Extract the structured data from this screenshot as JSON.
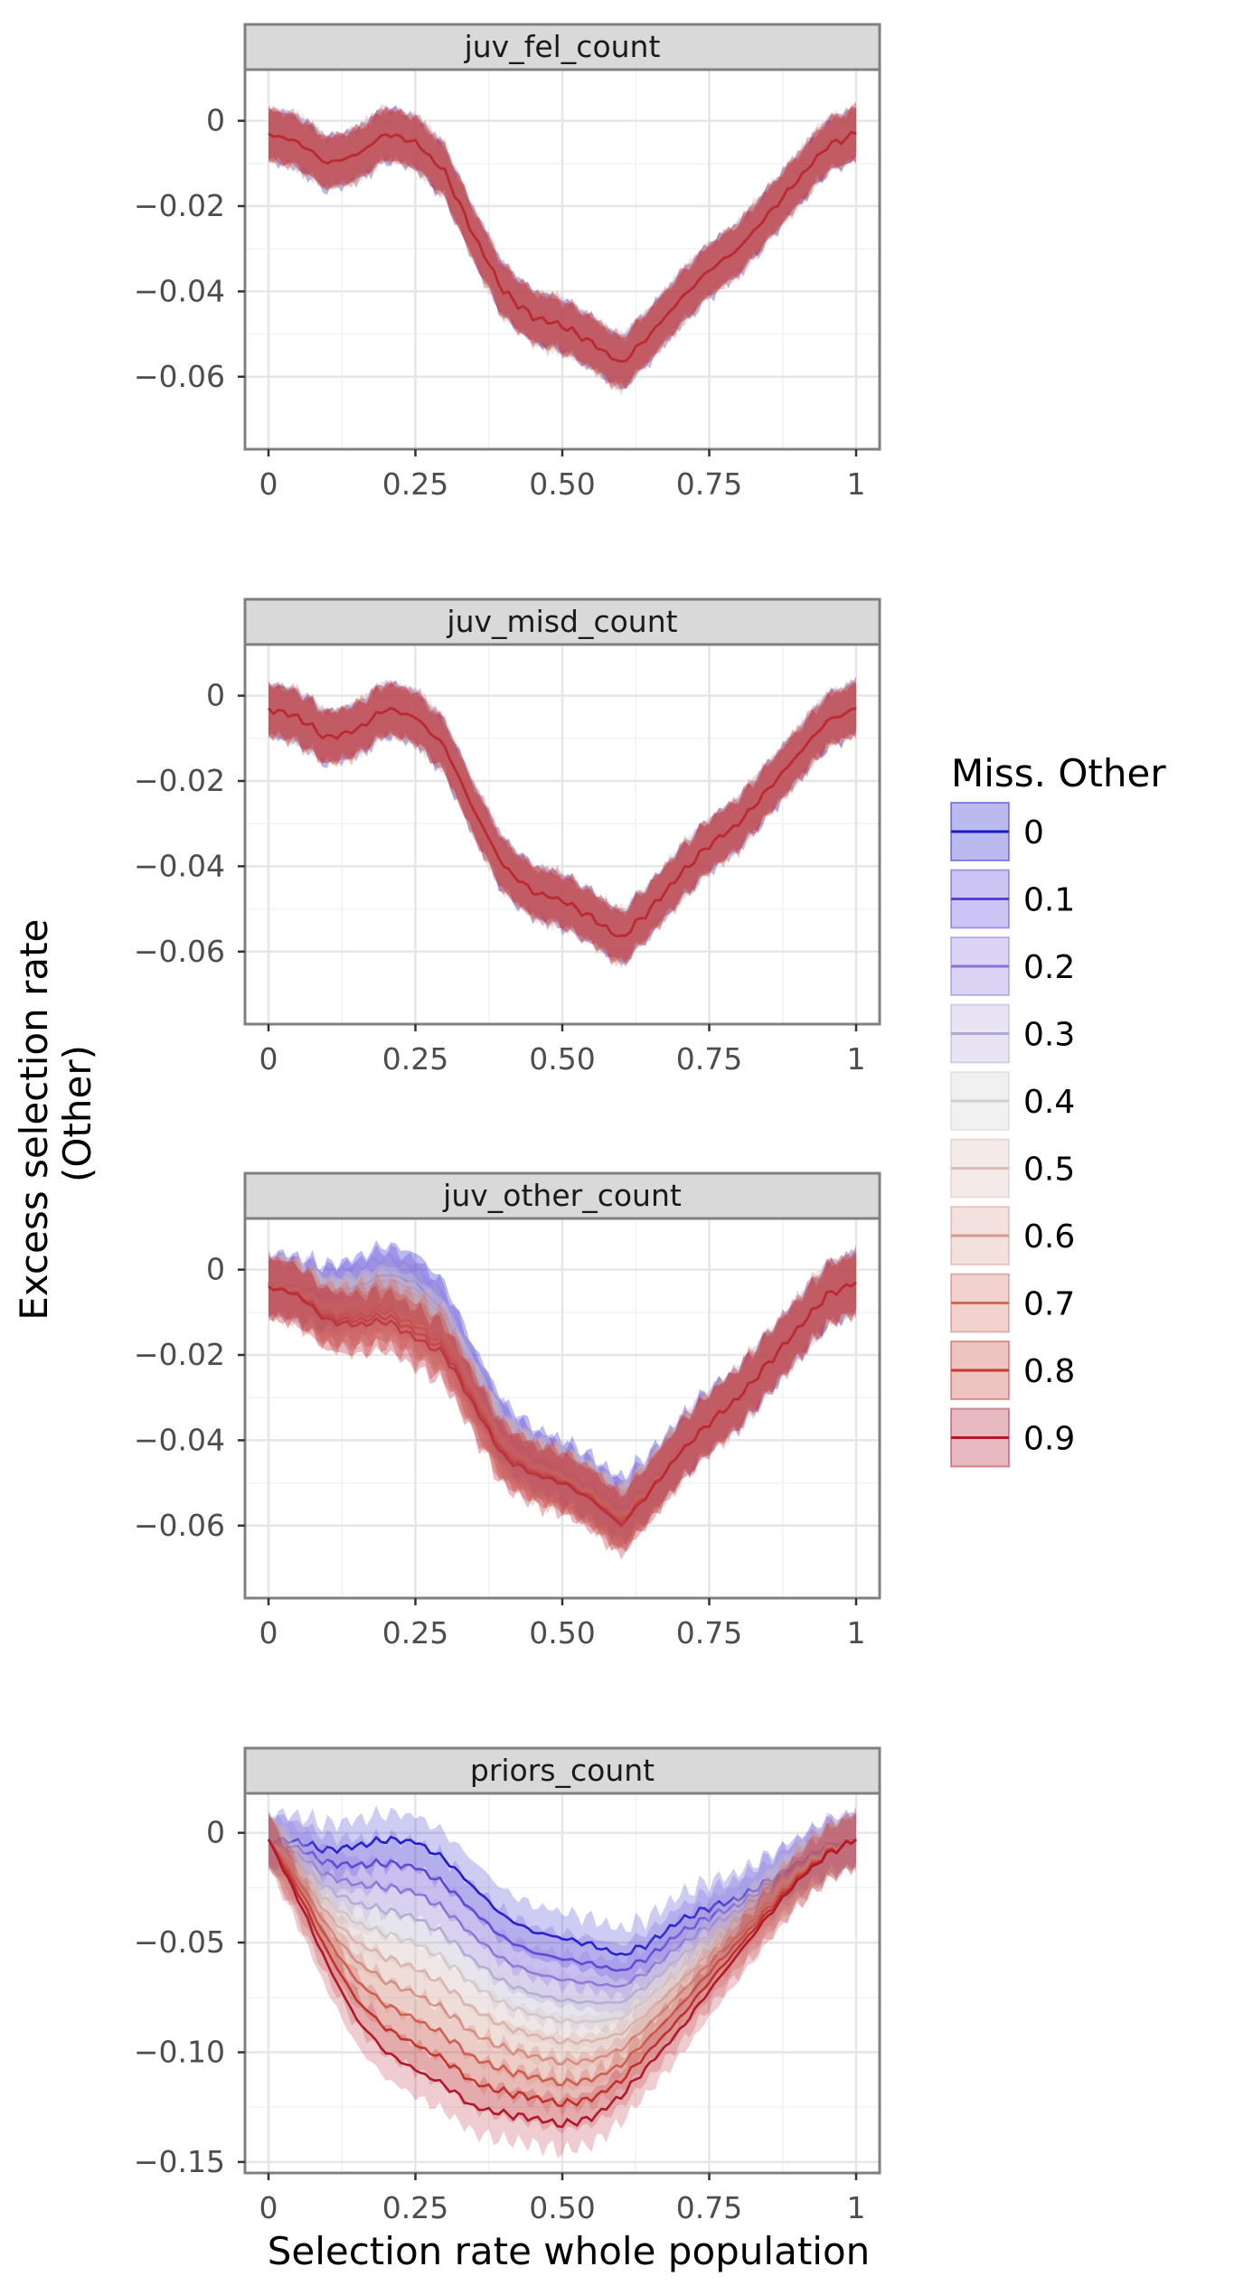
{
  "chart_data": {
    "type": "line",
    "xlabel": "Selection rate whole population",
    "ylabel_lines": [
      "Excess selection rate",
      "(Other)"
    ],
    "legend": {
      "title": "Miss. Other",
      "placement": "right",
      "entries": [
        "0",
        "0.1",
        "0.2",
        "0.3",
        "0.4",
        "0.5",
        "0.6",
        "0.7",
        "0.8",
        "0.9"
      ],
      "colors": [
        "#1a1acf",
        "#5b3fd6",
        "#8a6fd9",
        "#b3a5d6",
        "#cfcfcf",
        "#dcbcb6",
        "#d69a8e",
        "#cf6b5c",
        "#c63a2e",
        "#b2182b"
      ]
    },
    "x_ticks": [
      0,
      0.25,
      0.5,
      0.75,
      1
    ],
    "x_tick_labels": [
      "0",
      "0.25",
      "0.50",
      "0.75",
      "1"
    ],
    "xlim": [
      -0.04,
      1.04
    ],
    "facets": [
      {
        "label": "juv_fel_count",
        "ylim": [
          -0.077,
          0.012
        ],
        "y_ticks": [
          0,
          -0.02,
          -0.04,
          -0.06
        ],
        "y_tick_labels": [
          "0",
          "−0.02",
          "−0.04",
          "−0.06"
        ],
        "x": [
          0,
          0.05,
          0.1,
          0.15,
          0.2,
          0.25,
          0.3,
          0.35,
          0.4,
          0.45,
          0.5,
          0.55,
          0.6,
          0.65,
          0.7,
          0.75,
          0.8,
          0.85,
          0.9,
          0.95,
          1
        ],
        "series": [
          {
            "name": "0",
            "values": [
              -0.003,
              -0.005,
              -0.01,
              -0.008,
              -0.003,
              -0.005,
              -0.012,
              -0.027,
              -0.04,
              -0.046,
              -0.048,
              -0.052,
              -0.057,
              -0.05,
              -0.042,
              -0.035,
              -0.03,
              -0.022,
              -0.014,
              -0.006,
              -0.003
            ],
            "band": 0.006
          },
          {
            "name": "0.9",
            "values": [
              -0.003,
              -0.005,
              -0.01,
              -0.008,
              -0.003,
              -0.005,
              -0.012,
              -0.027,
              -0.04,
              -0.046,
              -0.048,
              -0.052,
              -0.057,
              -0.05,
              -0.042,
              -0.035,
              -0.03,
              -0.022,
              -0.014,
              -0.006,
              -0.003
            ],
            "band": 0.006
          }
        ]
      },
      {
        "label": "juv_misd_count",
        "ylim": [
          -0.077,
          0.012
        ],
        "y_ticks": [
          0,
          -0.02,
          -0.04,
          -0.06
        ],
        "y_tick_labels": [
          "0",
          "−0.02",
          "−0.04",
          "−0.06"
        ],
        "x": [
          0,
          0.05,
          0.1,
          0.15,
          0.2,
          0.25,
          0.3,
          0.35,
          0.4,
          0.45,
          0.5,
          0.55,
          0.6,
          0.65,
          0.7,
          0.75,
          0.8,
          0.85,
          0.9,
          0.95,
          1
        ],
        "series": [
          {
            "name": "0",
            "values": [
              -0.003,
              -0.005,
              -0.01,
              -0.008,
              -0.003,
              -0.005,
              -0.012,
              -0.027,
              -0.04,
              -0.046,
              -0.048,
              -0.052,
              -0.057,
              -0.05,
              -0.042,
              -0.035,
              -0.03,
              -0.022,
              -0.014,
              -0.006,
              -0.003
            ],
            "band": 0.006
          },
          {
            "name": "0.9",
            "values": [
              -0.003,
              -0.005,
              -0.01,
              -0.008,
              -0.003,
              -0.005,
              -0.012,
              -0.027,
              -0.04,
              -0.046,
              -0.048,
              -0.052,
              -0.057,
              -0.05,
              -0.042,
              -0.035,
              -0.03,
              -0.022,
              -0.014,
              -0.006,
              -0.003
            ],
            "band": 0.006
          }
        ]
      },
      {
        "label": "juv_other_count",
        "ylim": [
          -0.077,
          0.012
        ],
        "y_ticks": [
          0,
          -0.02,
          -0.04,
          -0.06
        ],
        "y_tick_labels": [
          "0",
          "−0.02",
          "−0.04",
          "−0.06"
        ],
        "x": [
          0,
          0.05,
          0.1,
          0.15,
          0.2,
          0.25,
          0.3,
          0.35,
          0.4,
          0.45,
          0.5,
          0.55,
          0.6,
          0.65,
          0.7,
          0.75,
          0.8,
          0.85,
          0.9,
          0.95,
          1
        ],
        "series": [
          {
            "name": "0",
            "values": [
              -0.003,
              -0.004,
              -0.006,
              -0.004,
              -0.001,
              -0.003,
              -0.01,
              -0.025,
              -0.038,
              -0.044,
              -0.047,
              -0.051,
              -0.056,
              -0.05,
              -0.042,
              -0.035,
              -0.03,
              -0.022,
              -0.014,
              -0.006,
              -0.003
            ],
            "band": 0.007
          },
          {
            "name": "0.9",
            "values": [
              -0.004,
              -0.006,
              -0.012,
              -0.013,
              -0.012,
              -0.016,
              -0.02,
              -0.032,
              -0.044,
              -0.048,
              -0.05,
              -0.054,
              -0.06,
              -0.052,
              -0.043,
              -0.036,
              -0.03,
              -0.022,
              -0.014,
              -0.006,
              -0.003
            ],
            "band": 0.007
          }
        ]
      },
      {
        "label": "priors_count",
        "ylim": [
          -0.155,
          0.018
        ],
        "y_ticks": [
          0,
          -0.05,
          -0.1,
          -0.15
        ],
        "y_tick_labels": [
          "0",
          "−0.05",
          "−0.10",
          "−0.15"
        ],
        "x": [
          0,
          0.05,
          0.1,
          0.15,
          0.2,
          0.25,
          0.3,
          0.35,
          0.4,
          0.45,
          0.5,
          0.55,
          0.6,
          0.65,
          0.7,
          0.75,
          0.8,
          0.85,
          0.9,
          0.95,
          1
        ],
        "series": [
          {
            "name": "0",
            "values": [
              -0.003,
              -0.004,
              -0.008,
              -0.006,
              -0.003,
              -0.004,
              -0.012,
              -0.025,
              -0.038,
              -0.045,
              -0.048,
              -0.051,
              -0.056,
              -0.05,
              -0.04,
              -0.034,
              -0.03,
              -0.022,
              -0.014,
              -0.006,
              -0.003
            ],
            "band": 0.012
          },
          {
            "name": "0.9",
            "values": [
              -0.003,
              -0.03,
              -0.06,
              -0.085,
              -0.1,
              -0.108,
              -0.115,
              -0.125,
              -0.128,
              -0.13,
              -0.133,
              -0.13,
              -0.12,
              -0.105,
              -0.09,
              -0.072,
              -0.055,
              -0.038,
              -0.022,
              -0.01,
              -0.003
            ],
            "band": 0.012
          }
        ]
      }
    ]
  }
}
